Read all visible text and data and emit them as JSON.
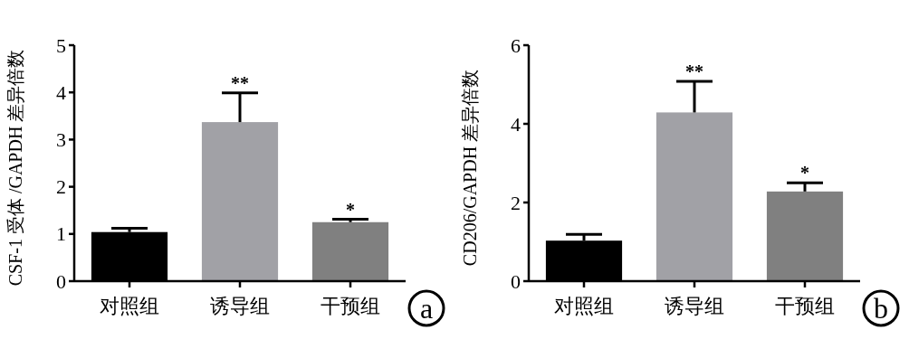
{
  "chart_data": [
    {
      "type": "bar",
      "ylabel": "CSF-1 受体 /GAPDH 差异倍数",
      "categories": [
        "对照组",
        "诱导组",
        "干预组"
      ],
      "values": [
        1.04,
        3.37,
        1.25
      ],
      "colors": [
        "#000000",
        "#a1a1a6",
        "#808080"
      ],
      "errors": [
        [
          1.04,
          1.12
        ],
        [
          3.37,
          3.99
        ],
        [
          1.25,
          1.31
        ]
      ],
      "ylim": [
        0,
        5
      ],
      "yticks": [
        0,
        1,
        2,
        3,
        4,
        5
      ],
      "grid": false,
      "annotations": [
        {
          "text": "**",
          "x": "诱导组",
          "y": 3.99
        },
        {
          "text": "*",
          "x": "干预组",
          "y": 1.31
        },
        "a"
      ]
    },
    {
      "type": "bar",
      "ylabel": "CD206/GAPDH 差异倍数",
      "categories": [
        "对照组",
        "诱导组",
        "干预组"
      ],
      "values": [
        1.03,
        4.29,
        2.28
      ],
      "colors": [
        "#000000",
        "#a1a1a6",
        "#808080"
      ],
      "errors": [
        [
          1.03,
          1.19
        ],
        [
          4.29,
          5.08
        ],
        [
          2.28,
          2.5
        ]
      ],
      "ylim": [
        0,
        6
      ],
      "yticks": [
        0,
        2,
        4,
        6
      ],
      "grid": false,
      "annotations": [
        {
          "text": "**",
          "x": "诱导组",
          "y": 5.08
        },
        {
          "text": "*",
          "x": "干预组",
          "y": 2.5
        },
        "b"
      ]
    }
  ]
}
